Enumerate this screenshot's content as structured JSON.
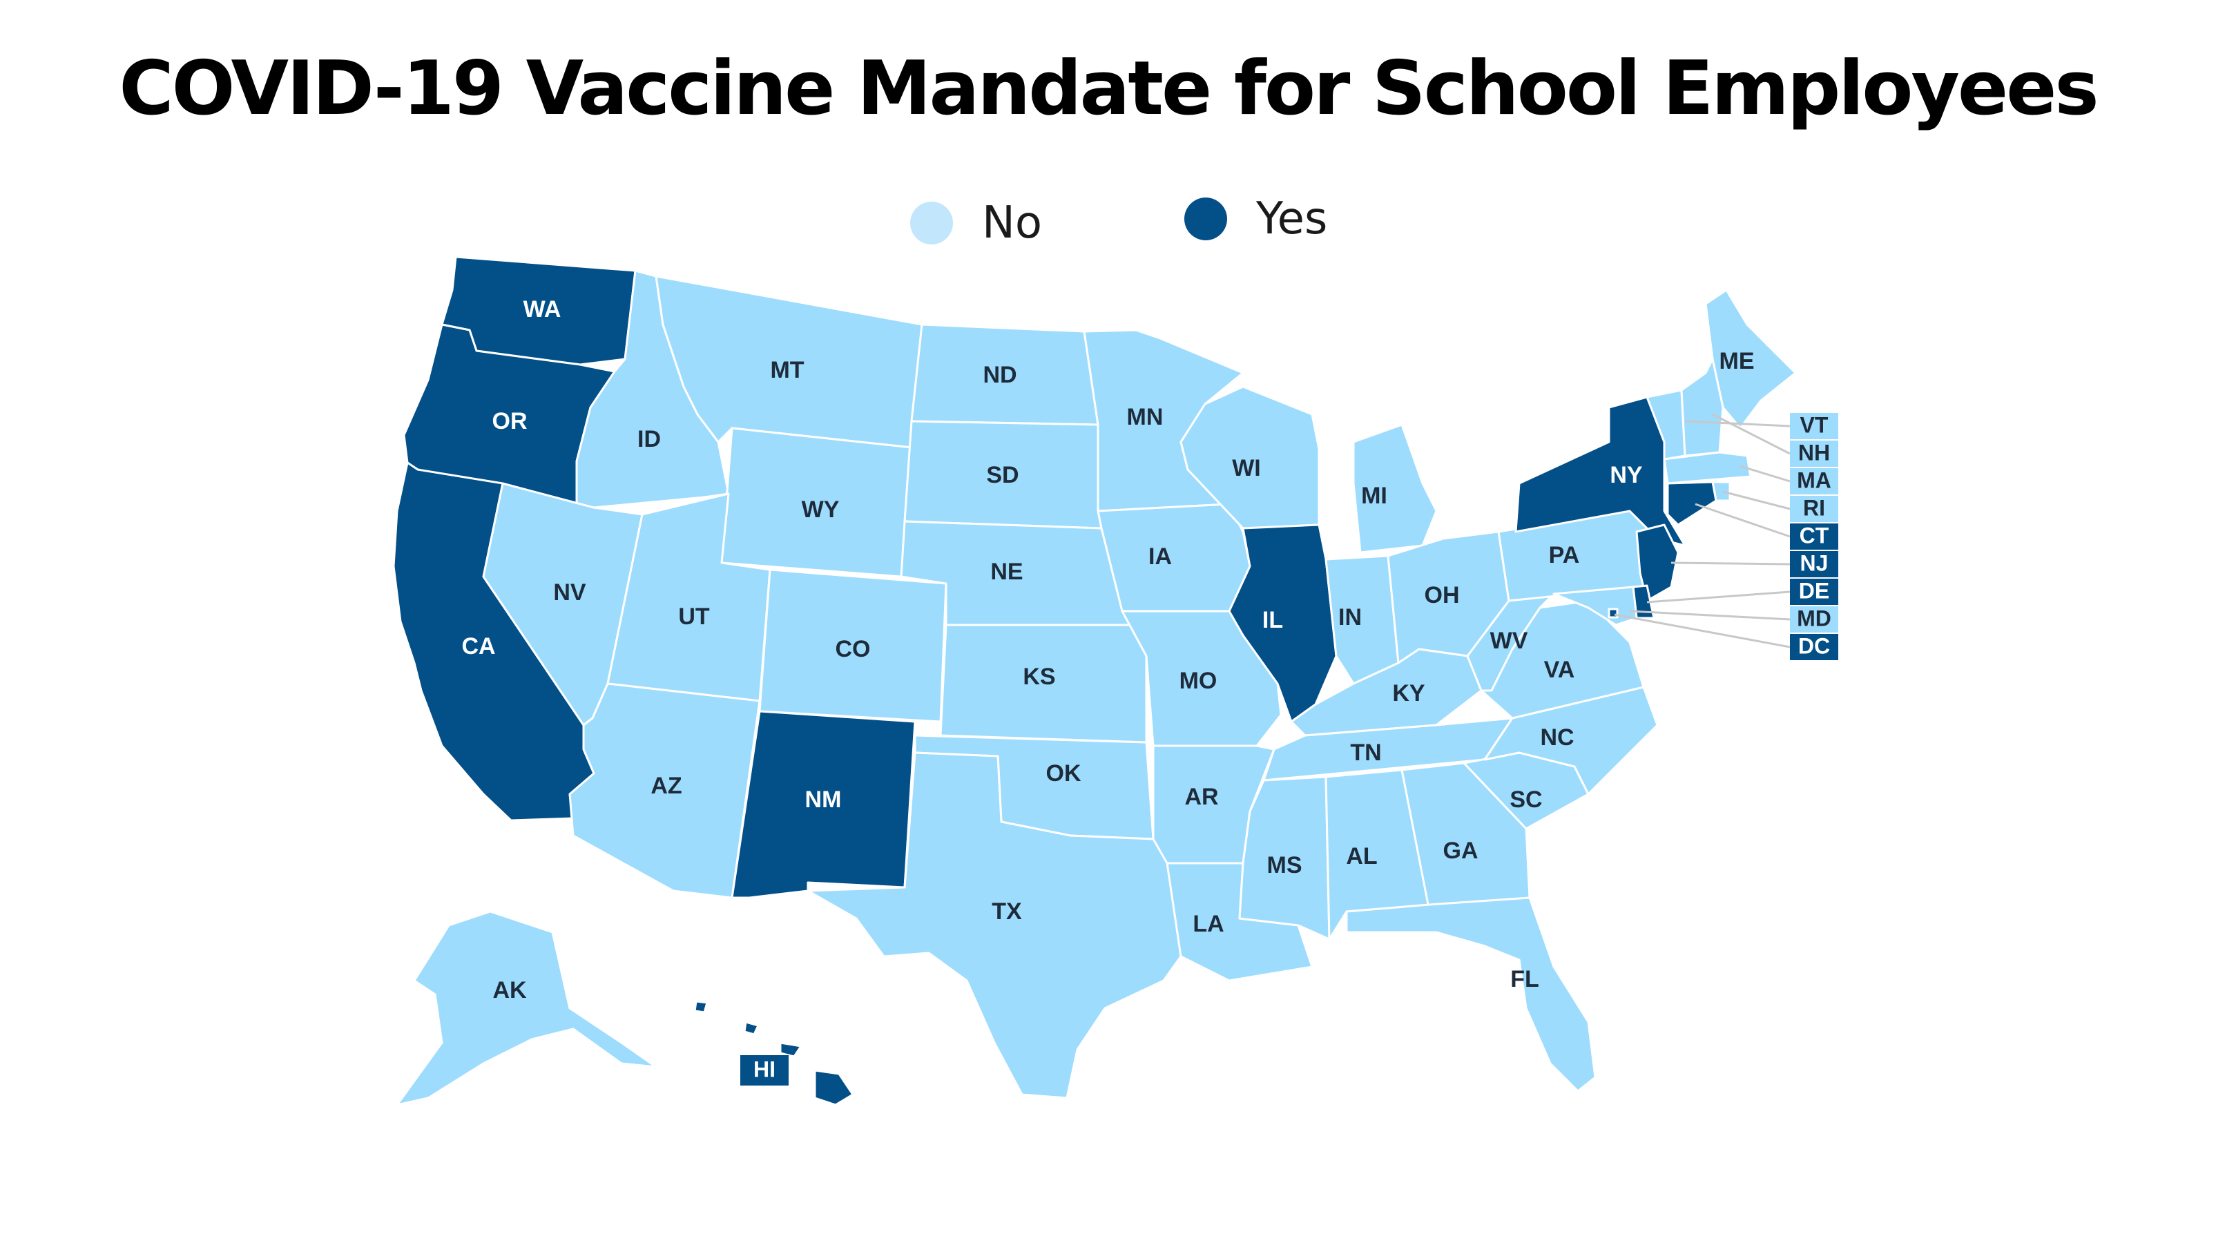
{
  "title": "COVID-19 Vaccine Mandate for School Employees",
  "colors": {
    "no": "#9edcfd",
    "yes": "#034f88",
    "border": "#ffffff",
    "label_on_no": "#1d2b3a",
    "label_on_yes": "#ffffff",
    "leader": "#c8c8c8"
  },
  "legend": [
    {
      "key": "no",
      "label": "No"
    },
    {
      "key": "yes",
      "label": "Yes"
    }
  ],
  "states": [
    {
      "abbr": "WA",
      "mandate": "yes"
    },
    {
      "abbr": "OR",
      "mandate": "yes"
    },
    {
      "abbr": "CA",
      "mandate": "yes"
    },
    {
      "abbr": "ID",
      "mandate": "no"
    },
    {
      "abbr": "NV",
      "mandate": "no"
    },
    {
      "abbr": "MT",
      "mandate": "no"
    },
    {
      "abbr": "WY",
      "mandate": "no"
    },
    {
      "abbr": "UT",
      "mandate": "no"
    },
    {
      "abbr": "AZ",
      "mandate": "no"
    },
    {
      "abbr": "CO",
      "mandate": "no"
    },
    {
      "abbr": "NM",
      "mandate": "yes"
    },
    {
      "abbr": "ND",
      "mandate": "no"
    },
    {
      "abbr": "SD",
      "mandate": "no"
    },
    {
      "abbr": "NE",
      "mandate": "no"
    },
    {
      "abbr": "KS",
      "mandate": "no"
    },
    {
      "abbr": "OK",
      "mandate": "no"
    },
    {
      "abbr": "TX",
      "mandate": "no"
    },
    {
      "abbr": "MN",
      "mandate": "no"
    },
    {
      "abbr": "IA",
      "mandate": "no"
    },
    {
      "abbr": "MO",
      "mandate": "no"
    },
    {
      "abbr": "AR",
      "mandate": "no"
    },
    {
      "abbr": "LA",
      "mandate": "no"
    },
    {
      "abbr": "WI",
      "mandate": "no"
    },
    {
      "abbr": "IL",
      "mandate": "yes"
    },
    {
      "abbr": "MI",
      "mandate": "no"
    },
    {
      "abbr": "IN",
      "mandate": "no"
    },
    {
      "abbr": "OH",
      "mandate": "no"
    },
    {
      "abbr": "KY",
      "mandate": "no"
    },
    {
      "abbr": "TN",
      "mandate": "no"
    },
    {
      "abbr": "MS",
      "mandate": "no"
    },
    {
      "abbr": "AL",
      "mandate": "no"
    },
    {
      "abbr": "GA",
      "mandate": "no"
    },
    {
      "abbr": "FL",
      "mandate": "no"
    },
    {
      "abbr": "SC",
      "mandate": "no"
    },
    {
      "abbr": "NC",
      "mandate": "no"
    },
    {
      "abbr": "VA",
      "mandate": "no"
    },
    {
      "abbr": "WV",
      "mandate": "no"
    },
    {
      "abbr": "PA",
      "mandate": "no"
    },
    {
      "abbr": "NY",
      "mandate": "yes"
    },
    {
      "abbr": "ME",
      "mandate": "no"
    },
    {
      "abbr": "AK",
      "mandate": "no"
    },
    {
      "abbr": "HI",
      "mandate": "yes"
    },
    {
      "abbr": "VT",
      "mandate": "no"
    },
    {
      "abbr": "NH",
      "mandate": "no"
    },
    {
      "abbr": "MA",
      "mandate": "no"
    },
    {
      "abbr": "RI",
      "mandate": "no"
    },
    {
      "abbr": "CT",
      "mandate": "yes"
    },
    {
      "abbr": "NJ",
      "mandate": "yes"
    },
    {
      "abbr": "DE",
      "mandate": "yes"
    },
    {
      "abbr": "MD",
      "mandate": "no"
    },
    {
      "abbr": "DC",
      "mandate": "yes"
    }
  ]
}
